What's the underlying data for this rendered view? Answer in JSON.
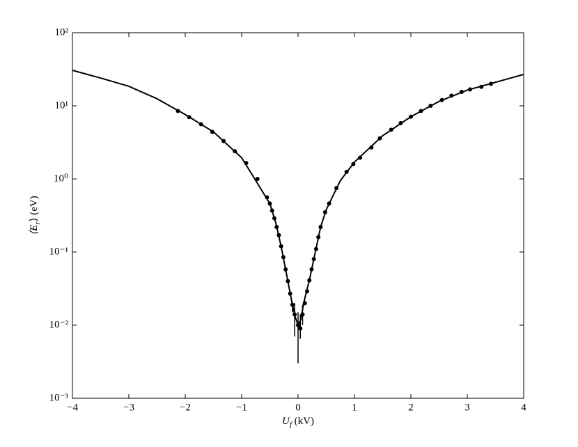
{
  "chart_data": {
    "type": "line",
    "x_label": {
      "before": "U",
      "subscript": "f",
      "after": " (kV)"
    },
    "y_label": {
      "before": "⟨E",
      "subscript": "r",
      "after": "⟩ (eV)"
    },
    "xlim": [
      -4,
      4
    ],
    "xticks": [
      {
        "value": -4,
        "label": "−4"
      },
      {
        "value": -3,
        "label": "−3"
      },
      {
        "value": -2,
        "label": "−2"
      },
      {
        "value": -1,
        "label": "−1"
      },
      0,
      1,
      2,
      3,
      4
    ],
    "ylim": [
      0.001,
      100
    ],
    "yticks": [
      {
        "value": 0.001,
        "label": "10⁻³"
      },
      {
        "value": 0.01,
        "label": "10⁻²"
      },
      {
        "value": 0.1,
        "label": "10⁻¹"
      },
      {
        "value": 1,
        "label": "10⁰"
      },
      {
        "value": 10,
        "label": "10¹"
      },
      {
        "value": 100,
        "label": "10²"
      }
    ],
    "log_y": true,
    "color": "#000000",
    "curve": {
      "x": [
        -4,
        -3.5,
        -3,
        -2.5,
        -2,
        -1.5,
        -1,
        -0.75,
        -0.5,
        -0.4,
        -0.3,
        -0.2,
        -0.15,
        -0.1,
        -0.05,
        0,
        0.05,
        0.1,
        0.15,
        0.2,
        0.3,
        0.4,
        0.5,
        0.75,
        1,
        1.5,
        2,
        2.5,
        3,
        3.5,
        4
      ],
      "values": [
        30.6,
        24,
        18.5,
        12.5,
        7.6,
        4.4,
        1.95,
        0.95,
        0.46,
        0.26,
        0.12,
        0.048,
        0.03,
        0.019,
        0.013,
        0.01,
        0.012,
        0.02,
        0.029,
        0.041,
        0.095,
        0.22,
        0.38,
        0.95,
        1.7,
        3.9,
        7.1,
        11.5,
        16.4,
        21,
        26.9
      ]
    },
    "points": {
      "x": [
        -2.13,
        -1.93,
        -1.72,
        -1.52,
        -1.32,
        -1.12,
        -0.92,
        -0.72,
        -0.55,
        -0.5,
        -0.46,
        -0.42,
        -0.38,
        -0.34,
        -0.3,
        -0.26,
        -0.22,
        -0.18,
        -0.14,
        -0.1,
        -0.06,
        0,
        0.04,
        0.08,
        0.12,
        0.16,
        0.2,
        0.24,
        0.28,
        0.32,
        0.36,
        0.4,
        0.48,
        0.55,
        0.68,
        0.86,
        0.98,
        1.1,
        1.3,
        1.45,
        1.65,
        1.82,
        2,
        2.18,
        2.35,
        2.55,
        2.72,
        2.9,
        3.05,
        3.25,
        3.42
      ],
      "values": [
        8.5,
        7,
        5.6,
        4.4,
        3.3,
        2.4,
        1.65,
        1,
        0.56,
        0.46,
        0.37,
        0.29,
        0.22,
        0.17,
        0.12,
        0.085,
        0.058,
        0.04,
        0.027,
        0.019,
        0.014,
        0.01,
        0.009,
        0.014,
        0.02,
        0.029,
        0.041,
        0.058,
        0.08,
        0.11,
        0.16,
        0.22,
        0.35,
        0.46,
        0.75,
        1.25,
        1.6,
        1.95,
        2.7,
        3.6,
        4.7,
        5.8,
        7.1,
        8.5,
        10,
        12,
        13.8,
        15.5,
        16.8,
        18.2,
        20
      ],
      "lower": [
        null,
        null,
        null,
        null,
        null,
        null,
        null,
        null,
        null,
        null,
        null,
        null,
        null,
        null,
        null,
        null,
        null,
        null,
        null,
        0.015,
        0.007,
        0.003,
        0.0065,
        0.01,
        null,
        null,
        null,
        null,
        null,
        null,
        null,
        null,
        null,
        null,
        null,
        null,
        null,
        null,
        null,
        null,
        null,
        null,
        null,
        null,
        null,
        null,
        null,
        null,
        null,
        null,
        null
      ],
      "upper": [
        null,
        null,
        null,
        null,
        null,
        null,
        null,
        null,
        null,
        null,
        null,
        null,
        null,
        null,
        null,
        null,
        null,
        null,
        null,
        0.021,
        0.02,
        0.015,
        0.014,
        0.019,
        null,
        null,
        null,
        null,
        null,
        null,
        null,
        null,
        null,
        null,
        null,
        null,
        null,
        null,
        null,
        null,
        null,
        null,
        null,
        null,
        null,
        null,
        null,
        null,
        null,
        null,
        null
      ]
    }
  }
}
